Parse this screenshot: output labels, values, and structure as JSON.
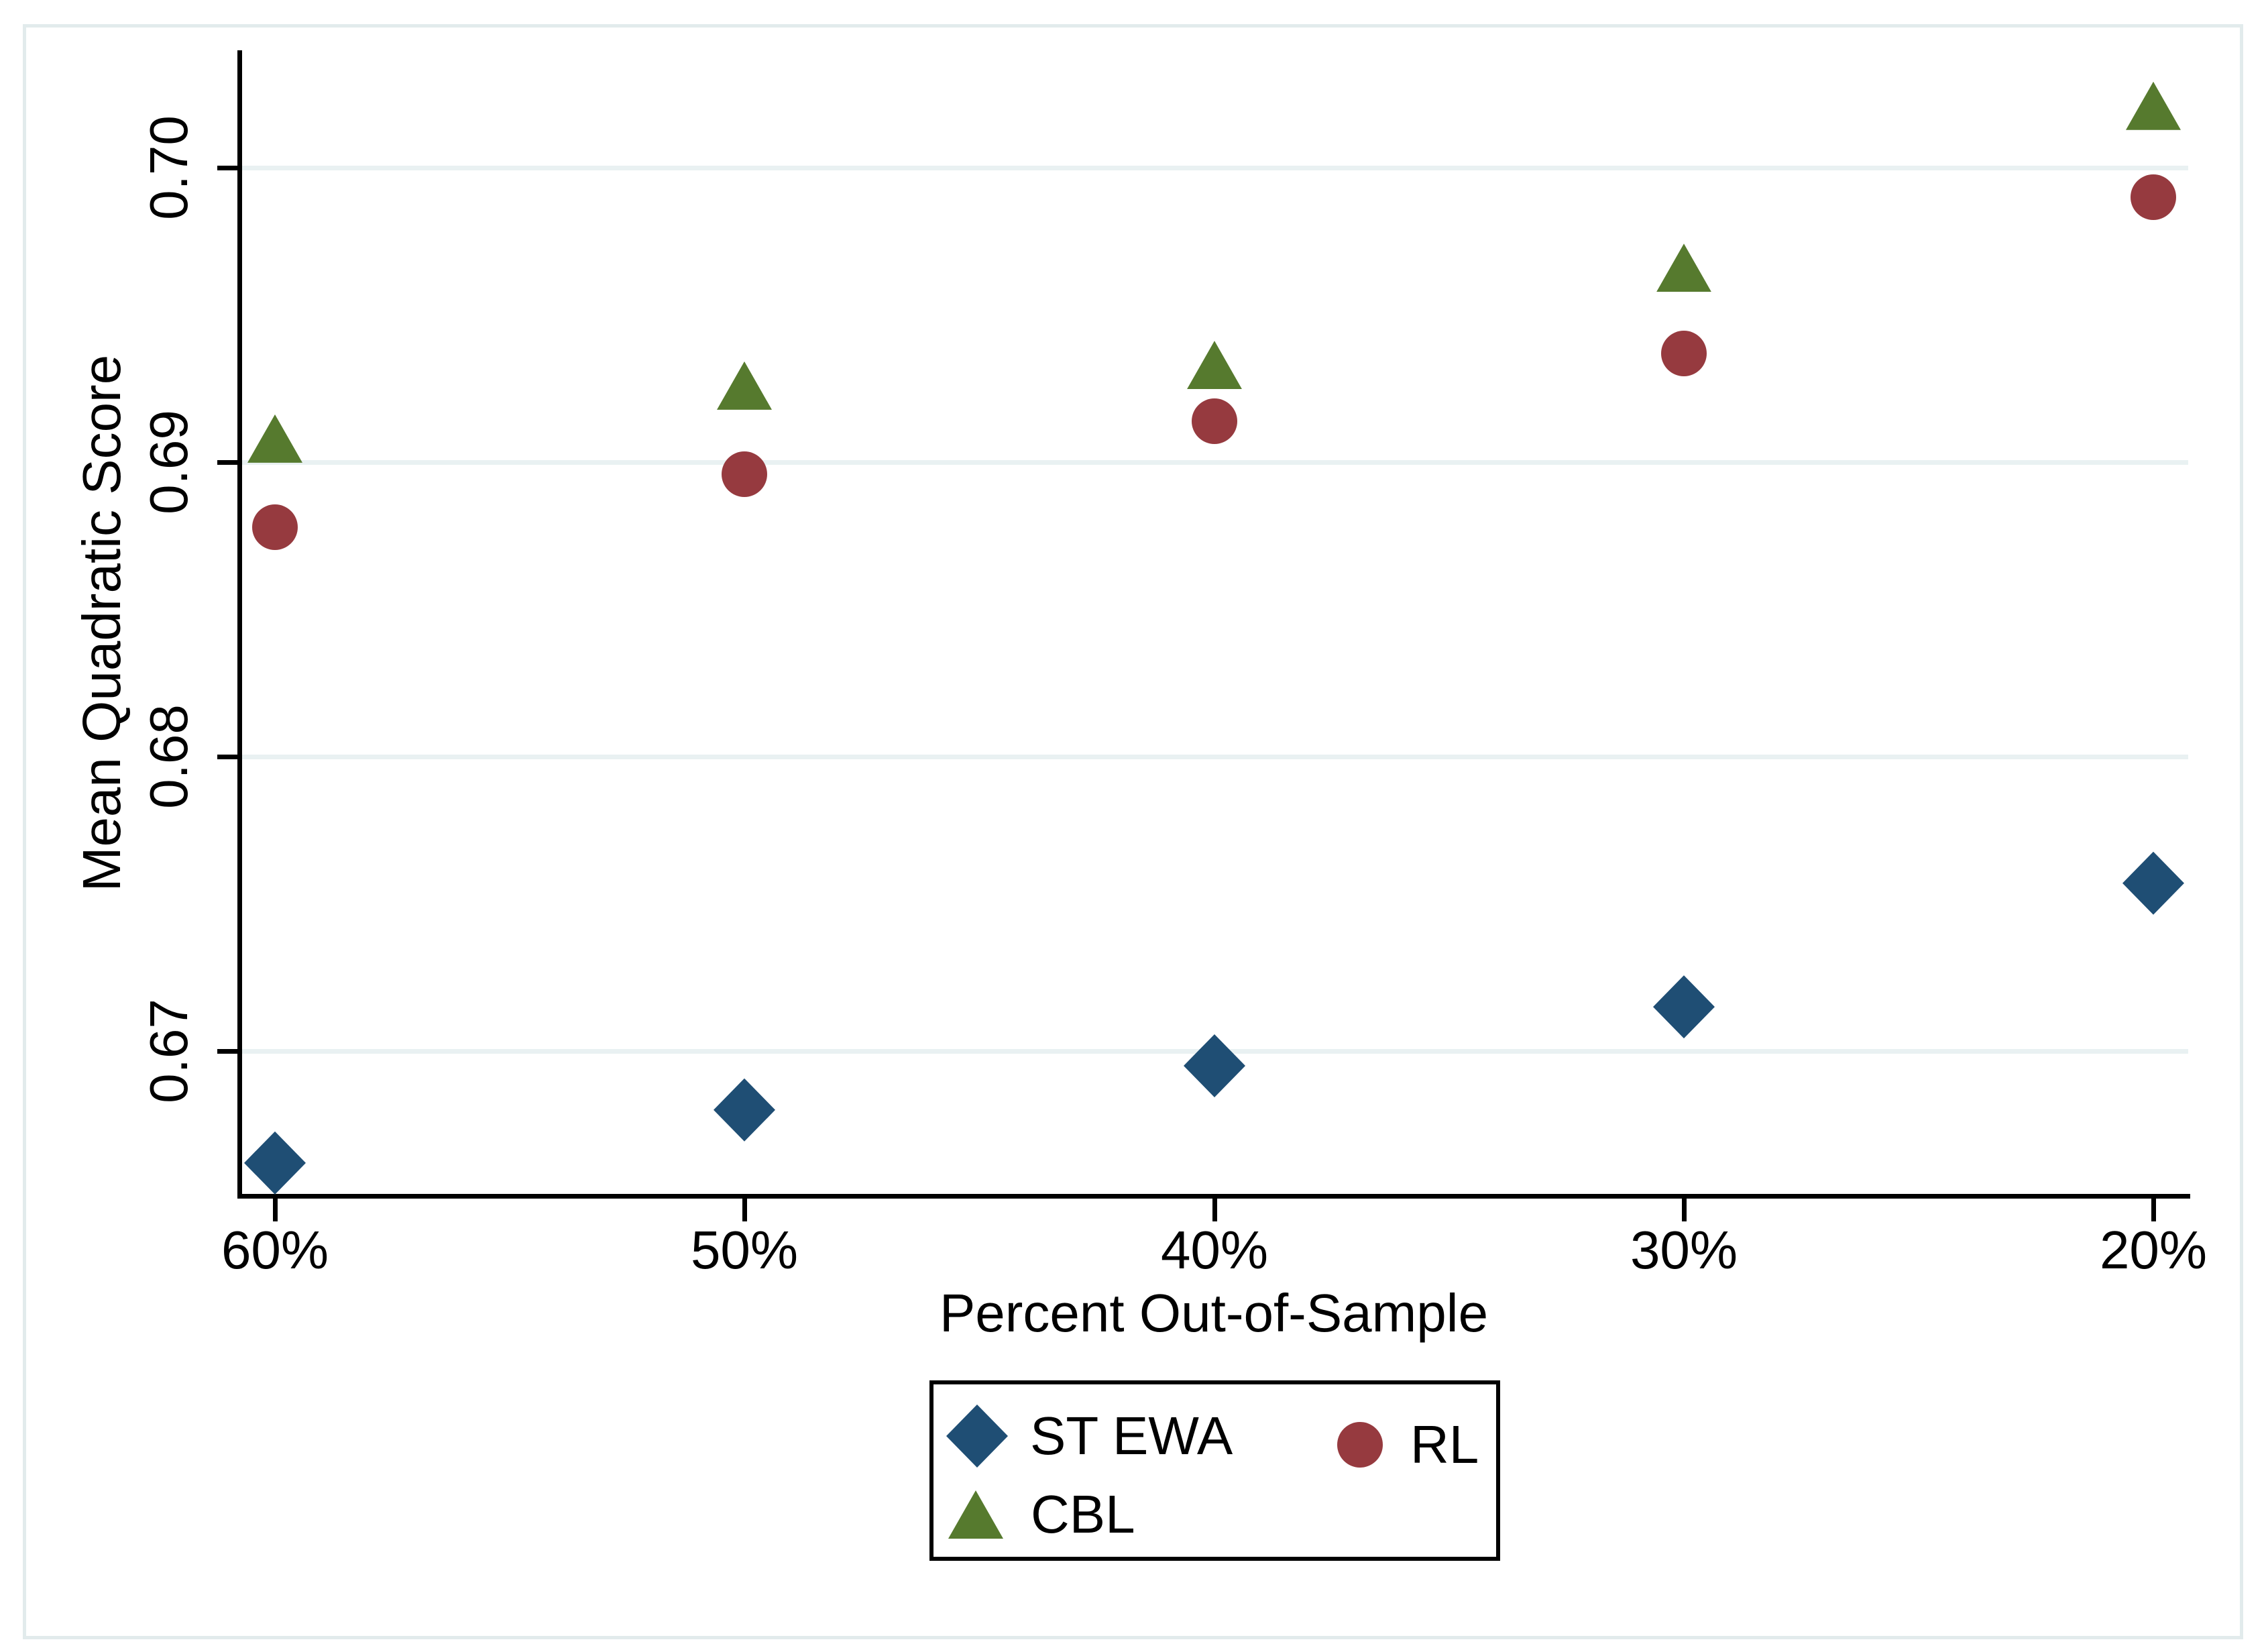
{
  "figure": {
    "y_axis": {
      "title": "Mean Quadratic Score",
      "tick_labels": [
        "0.70",
        "0.69",
        "0.68",
        "0.67"
      ],
      "tick_values": [
        0.7,
        0.69,
        0.68,
        0.67
      ]
    },
    "x_axis": {
      "title": "Percent Out-of-Sample",
      "tick_labels": [
        "60%",
        "50%",
        "40%",
        "30%",
        "20%"
      ]
    },
    "legend": {
      "items": [
        {
          "label": "ST EWA",
          "marker": "diamond",
          "color": "#1f4e74"
        },
        {
          "label": "RL",
          "marker": "circle",
          "color": "#963a3f"
        },
        {
          "label": "CBL",
          "marker": "triangle",
          "color": "#567a2e"
        }
      ]
    },
    "colors": {
      "navy": "#1f4e74",
      "maroon": "#963a3f",
      "forest_green": "#567a2e",
      "gridline": "#e9f1f2",
      "figure_border": "#e2ebec",
      "axis": "#000000"
    }
  },
  "chart_data": {
    "type": "scatter",
    "title": "",
    "xlabel": "Percent Out-of-Sample",
    "ylabel": "Mean Quadratic Score",
    "categories": [
      "60%",
      "50%",
      "40%",
      "30%",
      "20%"
    ],
    "series": [
      {
        "name": "ST EWA",
        "marker": "diamond",
        "color": "#1f4e74",
        "values": [
          0.6662,
          0.668,
          0.6695,
          0.6715,
          0.6757
        ]
      },
      {
        "name": "RL",
        "marker": "circle",
        "color": "#963a3f",
        "values": [
          0.6878,
          0.6896,
          0.6914,
          0.6937,
          0.699
        ]
      },
      {
        "name": "CBL",
        "marker": "triangle",
        "color": "#567a2e",
        "values": [
          0.6908,
          0.6926,
          0.6933,
          0.6966,
          0.7021
        ]
      }
    ],
    "y_ticks": [
      0.7,
      0.69,
      0.68,
      0.67
    ],
    "ylim": [
      0.665,
      0.704
    ],
    "grid": true,
    "legend_position": "bottom-center"
  }
}
